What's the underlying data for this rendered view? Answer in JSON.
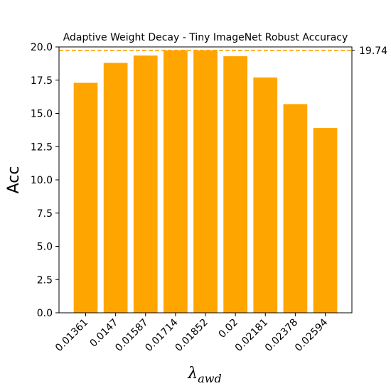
{
  "chart_data": {
    "type": "bar",
    "title": "Adaptive Weight Decay - Tiny ImageNet Robust Accuracy",
    "ylabel": "Acc",
    "xlabel": {
      "symbol": "λ",
      "subscript": "awd"
    },
    "categories": [
      "0.01361",
      "0.0147",
      "0.01587",
      "0.01714",
      "0.01852",
      "0.02",
      "0.02181",
      "0.02378",
      "0.02594"
    ],
    "values": [
      17.3,
      18.8,
      19.35,
      19.74,
      19.74,
      19.3,
      17.7,
      15.7,
      13.9
    ],
    "ylim": [
      0,
      20
    ],
    "yticks": [
      "0.0",
      "2.5",
      "5.0",
      "7.5",
      "10.0",
      "12.5",
      "15.0",
      "17.5",
      "20.0"
    ],
    "reference_line": {
      "value": 19.74,
      "label": "19.74",
      "color": "#FFA500",
      "style": "dashed"
    },
    "bar_color": "#FFA500",
    "grid": false,
    "legend": "none"
  }
}
